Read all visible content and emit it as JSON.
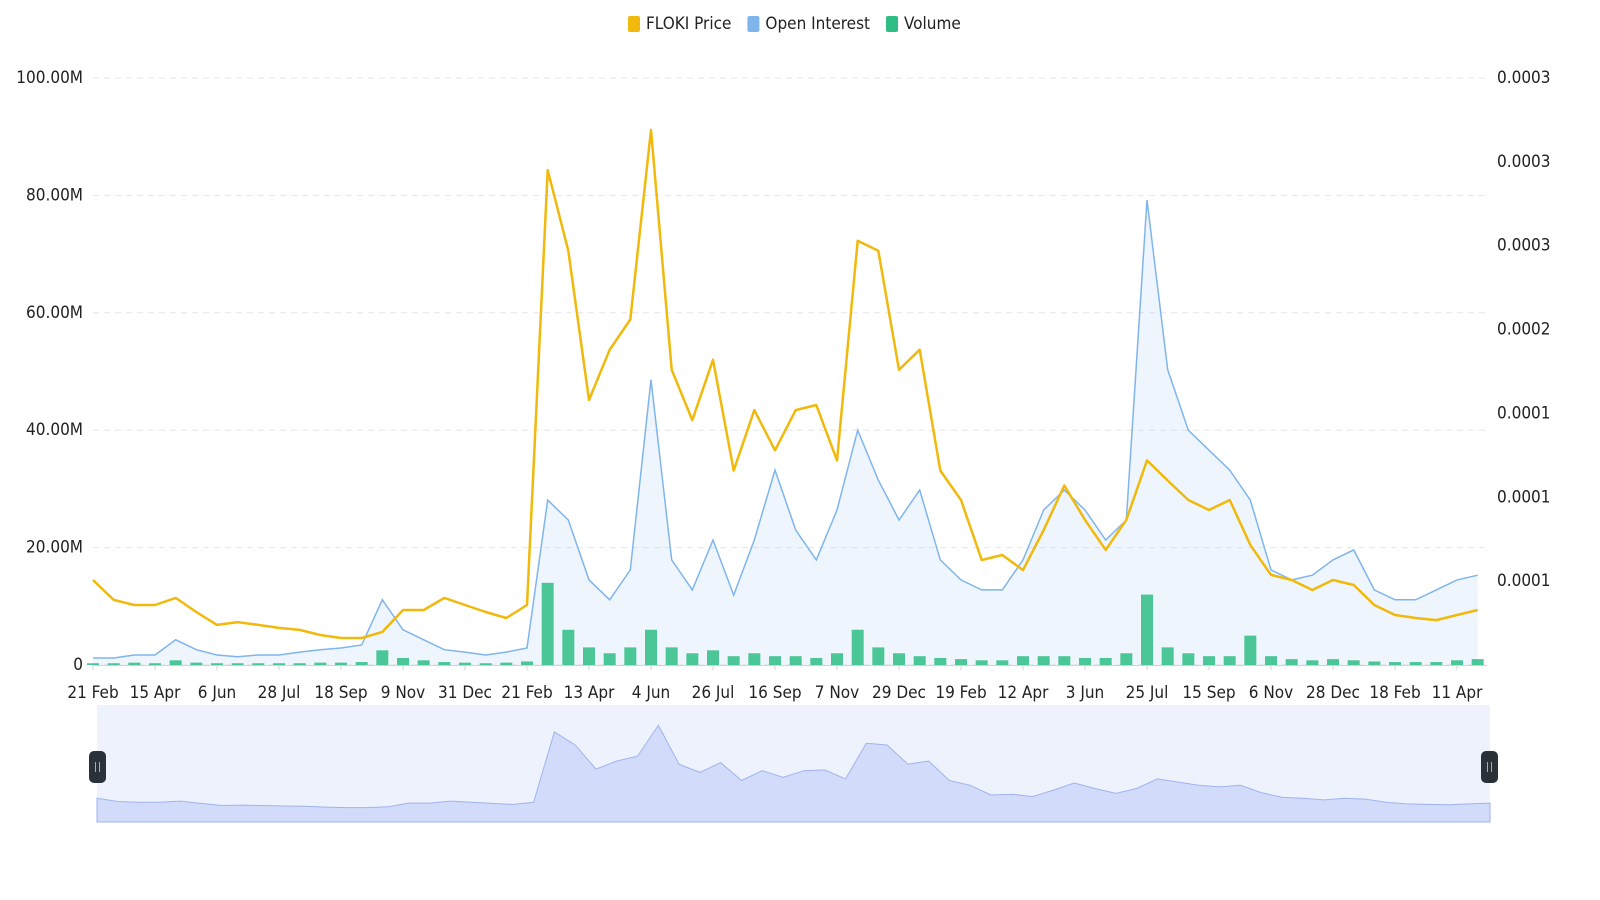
{
  "chart_data": {
    "type": "line",
    "categories": [
      "21 Feb",
      null,
      null,
      "15 Apr",
      null,
      null,
      "6 Jun",
      null,
      null,
      "28 Jul",
      null,
      null,
      "18 Sep",
      null,
      null,
      "9 Nov",
      null,
      null,
      "31 Dec",
      null,
      null,
      "21 Feb",
      null,
      null,
      "13 Apr",
      null,
      null,
      "4 Jun",
      null,
      null,
      "26 Jul",
      null,
      null,
      "16 Sep",
      null,
      null,
      "7 Nov",
      null,
      null,
      "29 Dec",
      null,
      null,
      "19 Feb",
      null,
      null,
      "12 Apr",
      null,
      null,
      "3 Jun",
      null,
      null,
      "25 Jul",
      null,
      null,
      "15 Sep",
      null,
      null,
      "6 Nov",
      null,
      null,
      "28 Dec",
      null,
      null,
      "18 Feb",
      null,
      null,
      "11 Apr",
      null
    ],
    "series": [
      {
        "name": "FLOKI Price",
        "kind": "line",
        "axis": "y2",
        "color": "#f0b90b",
        "values": [
          5.07e-05,
          3.88e-05,
          3.58e-05,
          3.58e-05,
          4e-05,
          3.16e-05,
          2.39e-05,
          2.56e-05,
          2.39e-05,
          2.21e-05,
          2.09e-05,
          1.79e-05,
          1.61e-05,
          1.61e-05,
          1.97e-05,
          3.28e-05,
          3.28e-05,
          4e-05,
          3.58e-05,
          3.16e-05,
          2.8e-05,
          3.58e-05,
          0.000295,
          0.000247,
          0.000158,
          0.000188,
          0.000206,
          0.000319,
          0.000176,
          0.000146,
          0.000182,
          0.000116,
          0.000152,
          0.000128,
          0.000152,
          0.000155,
          0.000122,
          0.000253,
          0.000247,
          0.000176,
          0.000188,
          0.000116,
          9.84e-05,
          6.26e-05,
          6.56e-05,
          5.66e-05,
          8.05e-05,
          0.000107,
          8.65e-05,
          6.86e-05,
          8.65e-05,
          0.000122,
          0.00011,
          9.84e-05,
          9.24e-05,
          9.84e-05,
          7.16e-05,
          5.37e-05,
          5.07e-05,
          4.47e-05,
          5.07e-05,
          4.77e-05,
          3.58e-05,
          2.98e-05,
          2.8e-05,
          2.68e-05,
          2.98e-05,
          3.28e-05
        ]
      },
      {
        "name": "Open Interest",
        "kind": "area",
        "color": "#7fb5ec",
        "values": [
          1200000,
          1200000,
          1700000,
          1700000,
          4300000,
          2600000,
          1700000,
          1400000,
          1700000,
          1700000,
          2200000,
          2600000,
          2900000,
          3400000,
          11100000,
          6000000,
          4300000,
          2600000,
          2200000,
          1700000,
          2200000,
          2900000,
          28100000,
          24700000,
          14500000,
          11100000,
          16200000,
          48600000,
          17900000,
          12800000,
          21300000,
          11900000,
          21300000,
          33200000,
          23000000,
          17900000,
          26400000,
          40000000,
          31500000,
          24700000,
          29800000,
          17900000,
          14500000,
          12800000,
          12800000,
          17900000,
          26400000,
          29800000,
          26400000,
          21300000,
          24700000,
          79200000,
          50300000,
          40000000,
          36600000,
          33200000,
          28100000,
          16200000,
          14500000,
          15300000,
          17900000,
          19600000,
          12800000,
          11100000,
          11100000,
          12800000,
          14500000,
          15300000
        ]
      },
      {
        "name": "Volume",
        "kind": "bar",
        "color": "#2ebd85",
        "values": [
          300000,
          300000,
          400000,
          300000,
          800000,
          400000,
          300000,
          300000,
          300000,
          300000,
          300000,
          400000,
          400000,
          500000,
          2500000,
          1200000,
          800000,
          500000,
          400000,
          300000,
          400000,
          600000,
          14000000,
          6000000,
          3000000,
          2000000,
          3000000,
          6000000,
          3000000,
          2000000,
          2500000,
          1500000,
          2000000,
          1500000,
          1500000,
          1200000,
          2000000,
          6000000,
          3000000,
          2000000,
          1500000,
          1200000,
          1000000,
          800000,
          800000,
          1500000,
          1500000,
          1500000,
          1200000,
          1200000,
          2000000,
          12000000,
          3000000,
          2000000,
          1500000,
          1500000,
          5000000,
          1500000,
          1000000,
          800000,
          1000000,
          800000,
          600000,
          500000,
          500000,
          500000,
          800000,
          1000000
        ]
      }
    ],
    "ylim": [
      0,
      100000000
    ],
    "yticks": [
      {
        "value": 0,
        "label": "0"
      },
      {
        "value": 20000000,
        "label": "20.00M"
      },
      {
        "value": 40000000,
        "label": "40.00M"
      },
      {
        "value": 60000000,
        "label": "60.00M"
      },
      {
        "value": 80000000,
        "label": "80.00M"
      },
      {
        "value": 100000000,
        "label": "100.00M"
      }
    ],
    "y2lim": [
      0,
      0.00035
    ],
    "y2ticks": [
      {
        "value": 5e-05,
        "label": "0.0001"
      },
      {
        "value": 0.0001,
        "label": "0.0001"
      },
      {
        "value": 0.00015,
        "label": "0.0001"
      },
      {
        "value": 0.0002,
        "label": "0.0002"
      },
      {
        "value": 0.00025,
        "label": "0.0003"
      },
      {
        "value": 0.0003,
        "label": "0.0003"
      },
      {
        "value": 0.00035,
        "label": "0.0003"
      }
    ],
    "grid": true,
    "legend": "top"
  }
}
